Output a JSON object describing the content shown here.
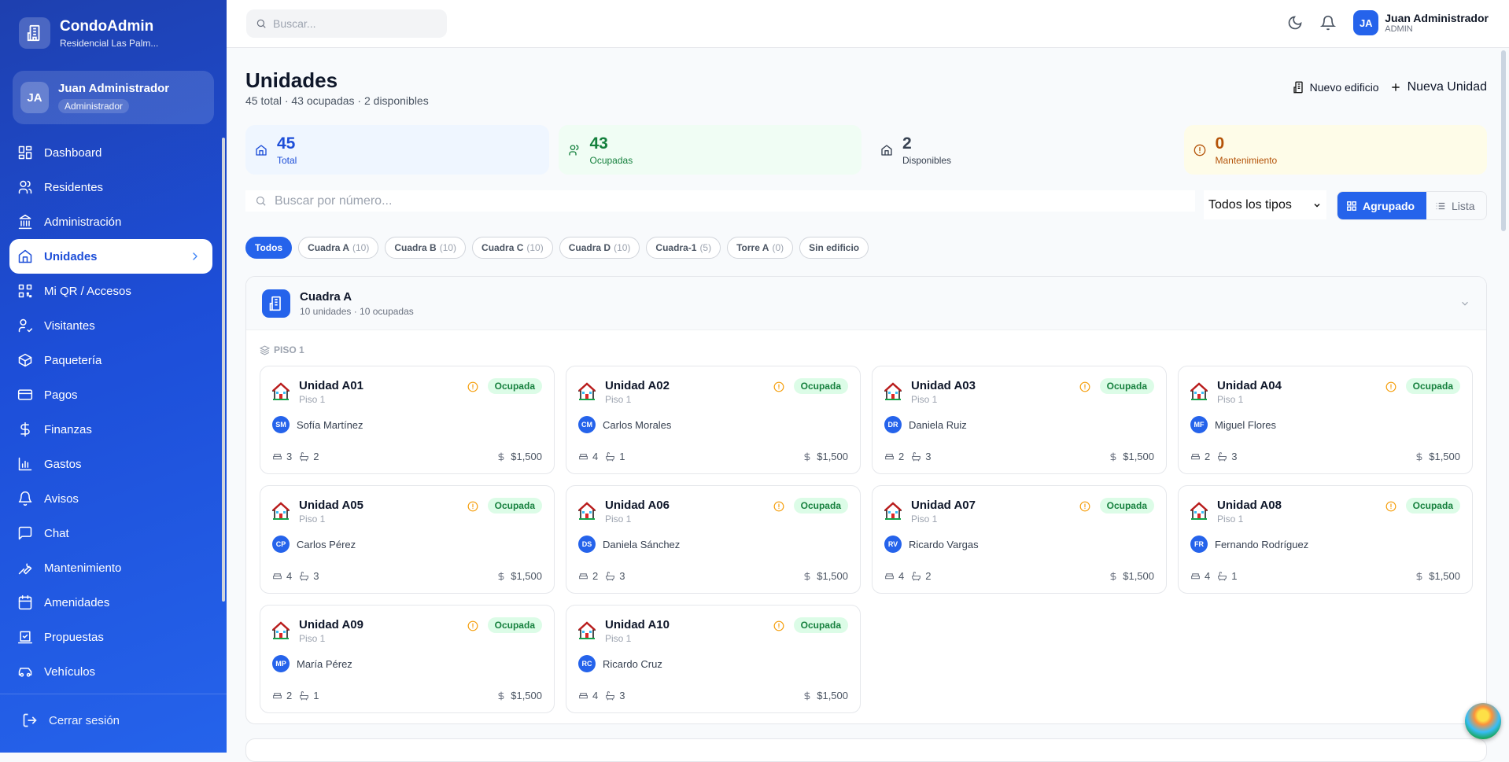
{
  "brand": {
    "name": "CondoAdmin",
    "subtitle": "Residencial Las Palm..."
  },
  "user": {
    "initials": "JA",
    "name": "Juan Administrador",
    "role": "Administrador",
    "role_short": "ADMIN"
  },
  "nav": [
    {
      "label": "Dashboard",
      "icon": "dashboard-icon"
    },
    {
      "label": "Residentes",
      "icon": "users-icon"
    },
    {
      "label": "Administración",
      "icon": "bank-icon"
    },
    {
      "label": "Unidades",
      "icon": "home-icon",
      "active": true
    },
    {
      "label": "Mi QR / Accesos",
      "icon": "qr-icon"
    },
    {
      "label": "Visitantes",
      "icon": "user-check-icon"
    },
    {
      "label": "Paquetería",
      "icon": "package-icon"
    },
    {
      "label": "Pagos",
      "icon": "credit-card-icon"
    },
    {
      "label": "Finanzas",
      "icon": "dollar-icon"
    },
    {
      "label": "Gastos",
      "icon": "bar-chart-icon"
    },
    {
      "label": "Avisos",
      "icon": "bell-icon"
    },
    {
      "label": "Chat",
      "icon": "chat-icon"
    },
    {
      "label": "Mantenimiento",
      "icon": "wrench-icon"
    },
    {
      "label": "Amenidades",
      "icon": "calendar-icon"
    },
    {
      "label": "Propuestas",
      "icon": "vote-icon"
    },
    {
      "label": "Vehículos",
      "icon": "car-icon"
    }
  ],
  "logout": "Cerrar sesión",
  "topbar": {
    "search_placeholder": "Buscar..."
  },
  "page": {
    "title": "Unidades",
    "subtitle": "45 total · 43 ocupadas · 2 disponibles",
    "new_building": "Nuevo edificio",
    "new_unit": "Nueva Unidad"
  },
  "stats": [
    {
      "value": "45",
      "label": "Total",
      "bg": "#eff6ff",
      "color": "#1d4ed8"
    },
    {
      "value": "43",
      "label": "Ocupadas",
      "bg": "#f0fdf4",
      "color": "#15803d"
    },
    {
      "value": "2",
      "label": "Disponibles",
      "bg": "#f8fafc",
      "color": "#374151"
    },
    {
      "value": "0",
      "label": "Mantenimiento",
      "bg": "#fefce8",
      "color": "#b45309"
    }
  ],
  "filters": {
    "search_placeholder": "Buscar por número...",
    "type_select": "Todos los tipos",
    "view_grouped": "Agrupado",
    "view_list": "Lista"
  },
  "chips": [
    {
      "label": "Todos",
      "count": ""
    },
    {
      "label": "Cuadra A",
      "count": "(10)"
    },
    {
      "label": "Cuadra B",
      "count": "(10)"
    },
    {
      "label": "Cuadra C",
      "count": "(10)"
    },
    {
      "label": "Cuadra D",
      "count": "(10)"
    },
    {
      "label": "Cuadra-1",
      "count": "(5)"
    },
    {
      "label": "Torre A",
      "count": "(0)"
    },
    {
      "label": "Sin edificio",
      "count": ""
    }
  ],
  "group": {
    "title": "Cuadra A",
    "subtitle": "10 unidades · 10 ocupadas",
    "floor": "PISO 1"
  },
  "units": [
    {
      "name": "Unidad A01",
      "floor": "Piso 1",
      "status": "Ocupada",
      "initials": "SM",
      "resident": "Sofía Martínez",
      "beds": "3",
      "baths": "2",
      "price": "$1,500"
    },
    {
      "name": "Unidad A02",
      "floor": "Piso 1",
      "status": "Ocupada",
      "initials": "CM",
      "resident": "Carlos Morales",
      "beds": "4",
      "baths": "1",
      "price": "$1,500"
    },
    {
      "name": "Unidad A03",
      "floor": "Piso 1",
      "status": "Ocupada",
      "initials": "DR",
      "resident": "Daniela Ruiz",
      "beds": "2",
      "baths": "3",
      "price": "$1,500"
    },
    {
      "name": "Unidad A04",
      "floor": "Piso 1",
      "status": "Ocupada",
      "initials": "MF",
      "resident": "Miguel Flores",
      "beds": "2",
      "baths": "3",
      "price": "$1,500"
    },
    {
      "name": "Unidad A05",
      "floor": "Piso 1",
      "status": "Ocupada",
      "initials": "CP",
      "resident": "Carlos Pérez",
      "beds": "4",
      "baths": "3",
      "price": "$1,500"
    },
    {
      "name": "Unidad A06",
      "floor": "Piso 1",
      "status": "Ocupada",
      "initials": "DS",
      "resident": "Daniela Sánchez",
      "beds": "2",
      "baths": "3",
      "price": "$1,500"
    },
    {
      "name": "Unidad A07",
      "floor": "Piso 1",
      "status": "Ocupada",
      "initials": "RV",
      "resident": "Ricardo Vargas",
      "beds": "4",
      "baths": "2",
      "price": "$1,500"
    },
    {
      "name": "Unidad A08",
      "floor": "Piso 1",
      "status": "Ocupada",
      "initials": "FR",
      "resident": "Fernando Rodríguez",
      "beds": "4",
      "baths": "1",
      "price": "$1,500"
    },
    {
      "name": "Unidad A09",
      "floor": "Piso 1",
      "status": "Ocupada",
      "initials": "MP",
      "resident": "María Pérez",
      "beds": "2",
      "baths": "1",
      "price": "$1,500"
    },
    {
      "name": "Unidad A10",
      "floor": "Piso 1",
      "status": "Ocupada",
      "initials": "RC",
      "resident": "Ricardo Cruz",
      "beds": "4",
      "baths": "3",
      "price": "$1,500"
    }
  ]
}
